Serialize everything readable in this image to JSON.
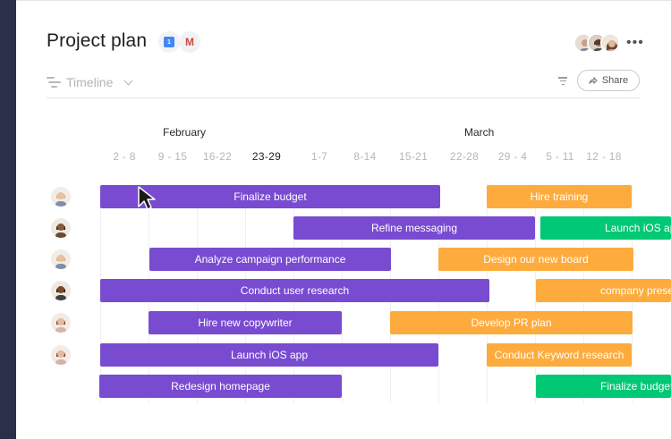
{
  "board": {
    "title": "Project plan",
    "integrations": [
      {
        "name": "calendar-icon",
        "glyph": "1",
        "color": "#4285f4"
      },
      {
        "name": "gmail-icon",
        "glyph": "M",
        "color": "#d44638"
      }
    ],
    "more_label": "•••"
  },
  "view": {
    "label": "Timeline"
  },
  "share": {
    "label": "Share"
  },
  "months": [
    "February",
    "March"
  ],
  "weeks": [
    "2 - 8",
    "9 - 15",
    "16-22",
    "23-29",
    "1-7",
    "8-14",
    "15-21",
    "22-28",
    "29 - 4",
    "5 - 11",
    "12 - 18"
  ],
  "current_week": "23-29",
  "colors": {
    "purple": "#784bd1",
    "orange": "#fdab3d",
    "green": "#00c875",
    "rail": "#2b2f4a"
  },
  "tasks": [
    {
      "label": "Finalize budget",
      "color": "purple"
    },
    {
      "label": "Hire training",
      "color": "orange"
    },
    {
      "label": "Refine messaging",
      "color": "purple"
    },
    {
      "label": "Launch iOS app",
      "color": "green"
    },
    {
      "label": "Analyze campaign performance",
      "color": "purple"
    },
    {
      "label": "Design our new board",
      "color": "orange"
    },
    {
      "label": "Conduct user research",
      "color": "purple"
    },
    {
      "label": "company presentation",
      "color": "orange"
    },
    {
      "label": "Hire new copywriter",
      "color": "purple"
    },
    {
      "label": "Develop PR plan",
      "color": "orange"
    },
    {
      "label": "Launch iOS app",
      "color": "purple"
    },
    {
      "label": "Conduct Keyword research",
      "color": "orange"
    },
    {
      "label": "Redesign homepage",
      "color": "purple"
    },
    {
      "label": "Finalize budget",
      "color": "green"
    }
  ]
}
